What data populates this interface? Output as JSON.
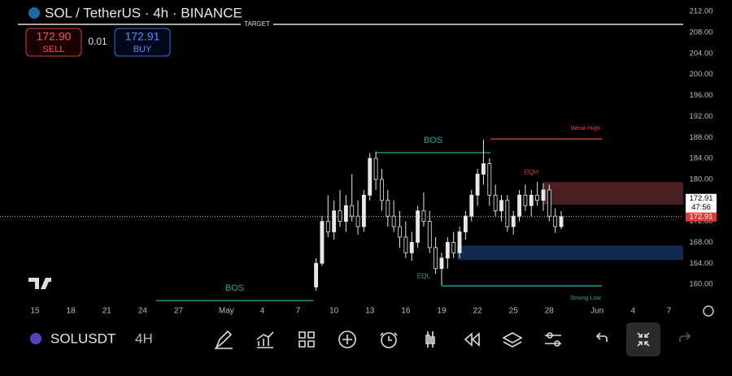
{
  "header": {
    "title": "SOL / TetherUS · 4h · BINANCE",
    "sell_price": "172.90",
    "sell_label": "SELL",
    "spread": "0.01",
    "buy_price": "172.91",
    "buy_label": "BUY",
    "target": "TARGET"
  },
  "toolbar": {
    "symbol": "SOLUSDT",
    "interval": "4H"
  },
  "chart_data": {
    "type": "candlestick",
    "color": "#e8e8e8",
    "candles": {
      "x": [
        23.5,
        24,
        24.5,
        25,
        25.5,
        26,
        26.5,
        27,
        27.5,
        28,
        28.5,
        29,
        29.5,
        30,
        30.5,
        31,
        31.5,
        32,
        32.5,
        33,
        33.5,
        34,
        34.5,
        35,
        35.5,
        36,
        36.5,
        37,
        37.5,
        38,
        38.5,
        39,
        39.5,
        40,
        40.5,
        41,
        41.5,
        42,
        42.5,
        43,
        43.5,
        44
      ],
      "open": [
        159.5,
        164,
        172,
        170,
        174,
        172,
        175,
        173,
        171,
        177,
        184,
        180,
        176,
        173,
        171,
        169,
        166,
        168,
        174,
        172,
        167,
        163,
        165,
        168,
        166,
        170,
        173,
        177,
        181,
        183,
        177,
        174,
        176,
        171,
        173,
        177,
        175,
        177,
        176,
        178,
        173,
        171
      ],
      "high": [
        165,
        173,
        177,
        176,
        178,
        177,
        181,
        176,
        178,
        185,
        185.3,
        182,
        178,
        176,
        174,
        172,
        170,
        175,
        177.5,
        174,
        169,
        166,
        169,
        170,
        171,
        174,
        178,
        182,
        187.6,
        184,
        179,
        177,
        177,
        174,
        178,
        179,
        178,
        179.5,
        179.3,
        179,
        174.5,
        174
      ],
      "low": [
        158.8,
        163.5,
        169,
        168.5,
        171,
        170,
        172,
        169.5,
        170,
        176,
        178,
        174,
        171,
        170,
        167,
        165,
        164.5,
        167,
        171,
        166,
        162,
        159.8,
        163,
        165,
        165,
        168.5,
        172,
        175,
        179,
        175,
        173,
        172,
        170,
        169.5,
        172,
        174,
        173,
        175,
        174,
        172,
        169.8,
        170.5
      ],
      "close": [
        164,
        172,
        170,
        174,
        172,
        175,
        173,
        171,
        177,
        184,
        180,
        176,
        173,
        171,
        169,
        166,
        168,
        174,
        172,
        167,
        163,
        165,
        168,
        166,
        170,
        173,
        177,
        181,
        183,
        177,
        174,
        176,
        171,
        173,
        177,
        175,
        177,
        176,
        178,
        173,
        171,
        172.9
      ]
    },
    "xlim": [
      -1.5,
      54.2
    ],
    "xticks": [
      {
        "value": 0,
        "label": "15"
      },
      {
        "value": 3,
        "label": "18"
      },
      {
        "value": 6,
        "label": "21"
      },
      {
        "value": 9,
        "label": "24"
      },
      {
        "value": 12,
        "label": "27"
      },
      {
        "value": 16,
        "label": "May"
      },
      {
        "value": 19,
        "label": "4"
      },
      {
        "value": 22,
        "label": "7"
      },
      {
        "value": 25,
        "label": "10"
      },
      {
        "value": 28,
        "label": "13"
      },
      {
        "value": 31,
        "label": "16"
      },
      {
        "value": 34,
        "label": "19"
      },
      {
        "value": 37,
        "label": "22"
      },
      {
        "value": 40,
        "label": "25"
      },
      {
        "value": 43,
        "label": "28"
      },
      {
        "value": 47,
        "label": "Jun"
      },
      {
        "value": 50,
        "label": "4"
      },
      {
        "value": 53,
        "label": "7"
      }
    ],
    "ylim": [
      154.6,
      214.2
    ],
    "yticks": [
      {
        "value": 160,
        "label": "160.00"
      },
      {
        "value": 164,
        "label": "164.00"
      },
      {
        "value": 168,
        "label": "168.00"
      },
      {
        "value": 172,
        "label": "172.00"
      },
      {
        "value": 176,
        "label": "176.00"
      },
      {
        "value": 180,
        "label": "180.00"
      },
      {
        "value": 184,
        "label": "184.00"
      },
      {
        "value": 188,
        "label": "188.00"
      },
      {
        "value": 192,
        "label": "192.00"
      },
      {
        "value": 196,
        "label": "196.00"
      },
      {
        "value": 200,
        "label": "200.00"
      },
      {
        "value": 204,
        "label": "204.00"
      },
      {
        "value": 208,
        "label": "208.00"
      },
      {
        "value": 212,
        "label": "212.00"
      }
    ],
    "last_price": 172.91,
    "price_tags": [
      {
        "value": 172.91,
        "countdown": "47:56"
      },
      {
        "value": 172.91
      }
    ],
    "zones": [
      {
        "top": 179.5,
        "bottom": 175.2,
        "x0": 42.5,
        "color": "#4a2022"
      },
      {
        "top": 167.4,
        "bottom": 164.6,
        "x0": 35.3,
        "color": "#13284f"
      }
    ],
    "lines": [
      {
        "label": "BOS",
        "price": 156.9,
        "x0": 10.1,
        "x1": 23.3,
        "color": "#26a69a",
        "label_pos": "above-middle"
      },
      {
        "label": "BOS",
        "price": 185.1,
        "x0": 28.5,
        "x1": 38.1,
        "color": "#26a69a",
        "label_pos": "above-middle"
      },
      {
        "label": "Weak High",
        "price": 187.7,
        "x0": 38.1,
        "x1": 47.4,
        "color": "#e53935",
        "label_pos": "above-end"
      },
      {
        "label": "Strong Low",
        "price": 159.7,
        "x0": 34,
        "x1": 47.4,
        "color": "#26a69a",
        "label_pos": "below-end"
      }
    ],
    "labels": [
      {
        "text": "EQH",
        "x": 41.5,
        "price": 181.3,
        "color": "#e53935"
      },
      {
        "text": "EQL",
        "x": 32.5,
        "price": 161.5,
        "color": "#26a69a"
      }
    ]
  }
}
